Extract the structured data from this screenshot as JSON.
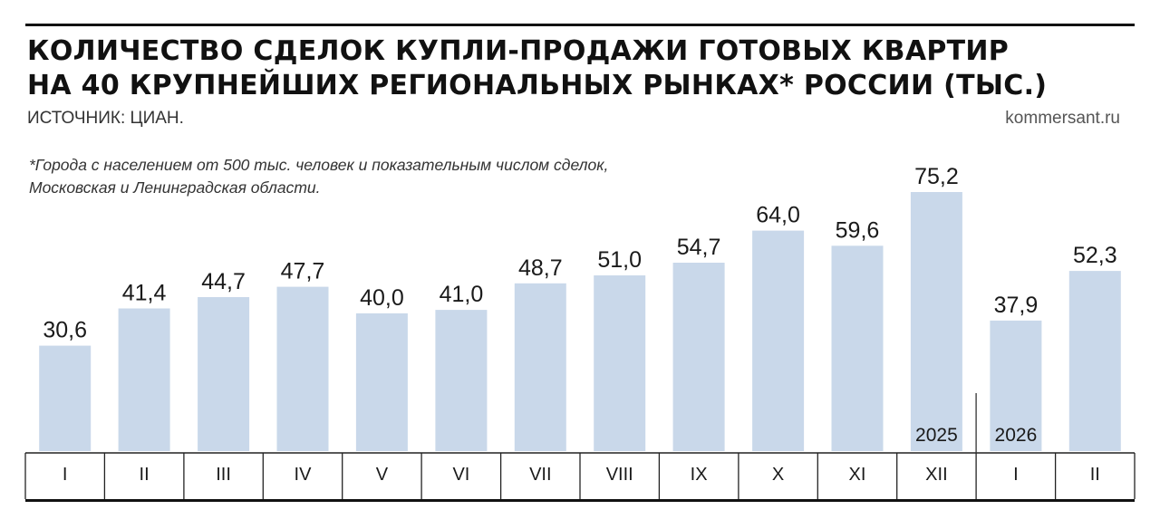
{
  "header": {
    "title_line1": "КОЛИЧЕСТВО СДЕЛОК КУПЛИ-ПРОДАЖИ ГОТОВЫХ КВАРТИР",
    "title_line2": "НА 40 КРУПНЕЙШИХ РЕГИОНАЛЬНЫХ РЫНКАХ* РОССИИ (ТЫС.)",
    "source": "ИСТОЧНИК: ЦИАН.",
    "site": "kommersant.ru"
  },
  "footnote": {
    "line1": "*Города с населением от 500 тыс. человек и показательным числом сделок,",
    "line2": "Московская и Ленинградская области."
  },
  "colors": {
    "bar": "#c9d8ea",
    "text": "#1a1a1a",
    "rule": "#111111"
  },
  "chart_data": {
    "type": "bar",
    "title": "КОЛИЧЕСТВО СДЕЛОК КУПЛИ-ПРОДАЖИ ГОТОВЫХ КВАРТИР НА 40 КРУПНЕЙШИХ РЕГИОНАЛЬНЫХ РЫНКАХ* РОССИИ (ТЫС.)",
    "categories": [
      "I",
      "II",
      "III",
      "IV",
      "V",
      "VI",
      "VII",
      "VIII",
      "IX",
      "X",
      "XI",
      "XII",
      "I",
      "II"
    ],
    "values": [
      30.6,
      41.4,
      44.7,
      47.7,
      40.0,
      41.0,
      48.7,
      51.0,
      54.7,
      64.0,
      59.6,
      75.2,
      37.9,
      52.3
    ],
    "value_labels": [
      "30,6",
      "41,4",
      "44,7",
      "47,7",
      "40,0",
      "41,0",
      "48,7",
      "51,0",
      "54,7",
      "64,0",
      "59,6",
      "75,2",
      "37,9",
      "52,3"
    ],
    "year_labels": [
      {
        "text": "2025",
        "category_index": 11
      },
      {
        "text": "2026",
        "category_index": 12
      }
    ],
    "year_divider_after_index": 11,
    "ylim": [
      0,
      75.2
    ],
    "grid": false,
    "legend": "none",
    "xlabel": "",
    "ylabel": ""
  }
}
